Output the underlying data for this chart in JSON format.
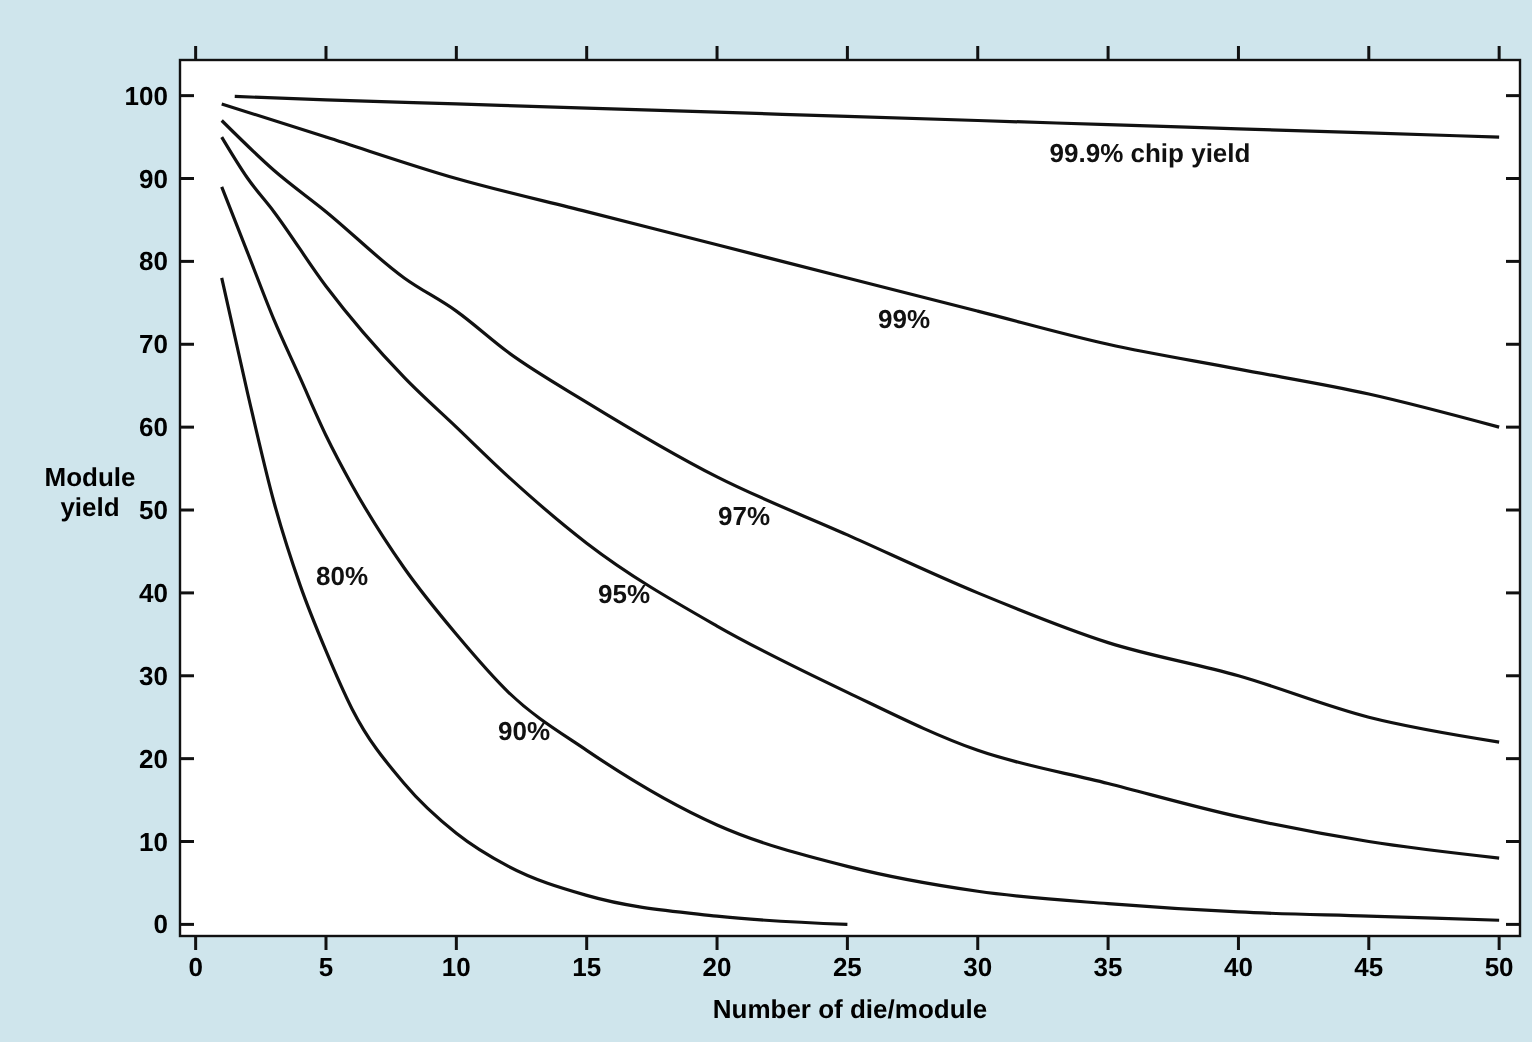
{
  "chart_data": {
    "type": "line",
    "xlabel": "Number of die/module",
    "ylabel": "Module\nyield",
    "xlim": [
      -0.6,
      50.8
    ],
    "ylim": [
      -1.4,
      104.3
    ],
    "xticks": [
      0,
      5,
      10,
      15,
      20,
      25,
      30,
      35,
      40,
      45,
      50
    ],
    "yticks": [
      0,
      10,
      20,
      30,
      40,
      50,
      60,
      70,
      80,
      90,
      100
    ],
    "grid": false,
    "marker": "none",
    "line_style": "solid",
    "series": [
      {
        "name": "99.9% chip yield",
        "color": "#111111",
        "x": [
          1.5,
          5,
          10,
          15,
          20,
          25,
          30,
          35,
          40,
          45,
          50
        ],
        "values": [
          99.9,
          99.5,
          99,
          98.5,
          98,
          97.5,
          97,
          96.5,
          96,
          95.5,
          95
        ]
      },
      {
        "name": "99%",
        "color": "#111111",
        "x": [
          1,
          5,
          10,
          15,
          20,
          25,
          30,
          35,
          40,
          45,
          50
        ],
        "values": [
          99,
          95,
          90,
          86,
          82,
          78,
          74,
          70,
          67,
          64,
          60
        ]
      },
      {
        "name": "97%",
        "color": "#111111",
        "x": [
          1,
          3,
          5,
          8,
          10,
          12,
          15,
          20,
          25,
          30,
          35,
          40,
          45,
          50
        ],
        "values": [
          97,
          91,
          86,
          78,
          74,
          69,
          63,
          54,
          47,
          40,
          34,
          30,
          25,
          22
        ]
      },
      {
        "name": "95%",
        "color": "#111111",
        "x": [
          1,
          2,
          3,
          5,
          8,
          10,
          12,
          15,
          20,
          25,
          30,
          35,
          40,
          45,
          50
        ],
        "values": [
          95,
          90,
          86,
          77,
          66,
          60,
          54,
          46,
          36,
          28,
          21,
          17,
          13,
          10,
          8
        ]
      },
      {
        "name": "90%",
        "color": "#111111",
        "x": [
          1,
          2,
          3,
          4,
          5,
          6,
          8,
          10,
          12,
          15,
          20,
          25,
          30,
          35,
          40,
          45,
          50
        ],
        "values": [
          89,
          81,
          73,
          66,
          59,
          53,
          43,
          35,
          28,
          21,
          12,
          7,
          4,
          2.5,
          1.5,
          1,
          0.5
        ]
      },
      {
        "name": "80%",
        "color": "#111111",
        "x": [
          1,
          2,
          3,
          4,
          5,
          6,
          8,
          10,
          12,
          15,
          20,
          25
        ],
        "values": [
          78,
          64,
          51,
          41,
          33,
          26,
          17,
          11,
          7,
          3.5,
          1,
          0
        ]
      }
    ]
  }
}
